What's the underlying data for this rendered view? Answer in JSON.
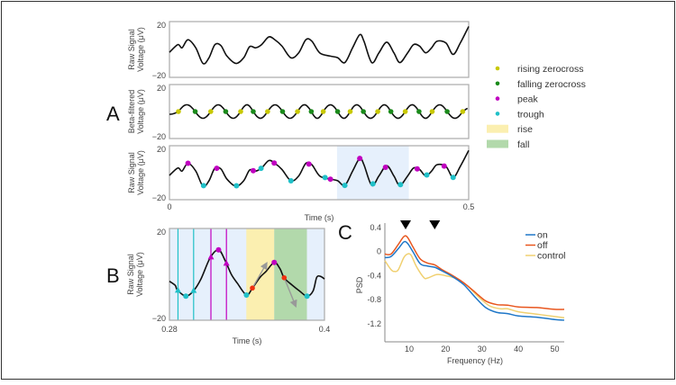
{
  "panel_letters": {
    "a": "A",
    "b": "B",
    "c": "C"
  },
  "colors": {
    "signal": "#111111",
    "rising_zerocross": "#c8c800",
    "falling_zerocross": "#1a8a1a",
    "peak": "#c000c0",
    "trough": "#20c0c8",
    "rise": "#fbefb0",
    "fall": "#b2d9ab",
    "window": "#e6f0fc",
    "extrema_marker": "#f03010",
    "arrow": "#999999",
    "on": "#1f77c8",
    "off": "#e8561e",
    "control": "#f0d070"
  },
  "legend_a": [
    {
      "label": "rising zerocross",
      "kind": "dot",
      "color_key": "rising_zerocross"
    },
    {
      "label": "falling zerocross",
      "kind": "dot",
      "color_key": "falling_zerocross"
    },
    {
      "label": "peak",
      "kind": "dot",
      "color_key": "peak"
    },
    {
      "label": "trough",
      "kind": "dot",
      "color_key": "trough"
    },
    {
      "label": "rise",
      "kind": "box",
      "color_key": "rise"
    },
    {
      "label": "fall",
      "kind": "box",
      "color_key": "fall"
    }
  ],
  "chart_data": [
    {
      "id": "A-raw",
      "type": "line",
      "ylabel": [
        "Raw Signal",
        "Voltage (μV)"
      ],
      "ylim": [
        -20,
        20
      ],
      "xlim": [
        0,
        0.5
      ],
      "yticks": [
        "20",
        "−20"
      ],
      "raw_signal": {
        "t": [
          0,
          0.014,
          0.021,
          0.031,
          0.044,
          0.056,
          0.066,
          0.076,
          0.086,
          0.096,
          0.111,
          0.124,
          0.134,
          0.144,
          0.154,
          0.166,
          0.176,
          0.188,
          0.203,
          0.216,
          0.228,
          0.238,
          0.251,
          0.268,
          0.281,
          0.293,
          0.306,
          0.318,
          0.325,
          0.338,
          0.35,
          0.363,
          0.375,
          0.385,
          0.398,
          0.408,
          0.418,
          0.428,
          0.438,
          0.447,
          0.462,
          0.474,
          0.486,
          0.5
        ],
        "v": [
          -2,
          3.5,
          1.2,
          7,
          1.2,
          -10,
          -6,
          3.5,
          2.8,
          -4.7,
          -10,
          -6,
          2,
          1.2,
          3.5,
          9,
          7,
          2.4,
          -6,
          -2.4,
          7,
          5.9,
          -2.4,
          -4.7,
          -5.9,
          -9.4,
          1.2,
          10.6,
          5.9,
          -9.4,
          -2.4,
          5.2,
          -2.4,
          -9.4,
          -2.4,
          3.5,
          2.4,
          -2.4,
          1.2,
          5.9,
          4.7,
          -3.5,
          4.7,
          16.5
        ]
      }
    },
    {
      "id": "A-beta",
      "type": "line",
      "ylabel": [
        "Beta-filtered",
        "Voltage (μV)"
      ],
      "ylim": [
        -20,
        20
      ],
      "xlim": [
        0,
        0.5
      ],
      "yticks": [
        "20",
        "−20"
      ],
      "rising_zerocross_t": [
        0.015,
        0.069,
        0.119,
        0.164,
        0.214,
        0.257,
        0.302,
        0.348,
        0.394,
        0.439,
        0.49
      ],
      "falling_zerocross_t": [
        0.043,
        0.094,
        0.14,
        0.189,
        0.237,
        0.281,
        0.324,
        0.37,
        0.417,
        0.464
      ],
      "amplitude": 5
    },
    {
      "id": "A-raw-annotated",
      "type": "line",
      "ylabel": [
        "Raw Signal",
        "Voltage (μV)"
      ],
      "ylim": [
        -20,
        20
      ],
      "xlim": [
        0,
        0.5
      ],
      "yticks": [
        "20",
        "−20"
      ],
      "xticks": [
        "0",
        "0.5"
      ],
      "xlabel": "Time (s)",
      "peak_t": [
        0.031,
        0.079,
        0.14,
        0.175,
        0.233,
        0.269,
        0.318,
        0.361,
        0.414,
        0.459
      ],
      "trough_t": [
        0.057,
        0.112,
        0.153,
        0.203,
        0.26,
        0.293,
        0.34,
        0.386,
        0.43,
        0.474
      ],
      "highlight_window": [
        0.28,
        0.4
      ]
    },
    {
      "id": "B",
      "type": "line",
      "ylabel": [
        "Raw Signal",
        "Voltage (μV)"
      ],
      "ylim": [
        -20,
        20
      ],
      "xlim": [
        0.28,
        0.4
      ],
      "yticks": [
        "20",
        "−20"
      ],
      "xticks": [
        "0.28",
        "0.4"
      ],
      "xlabel": "Time (s)",
      "signal": {
        "t": [
          0.28,
          0.2845,
          0.2861,
          0.2927,
          0.2986,
          0.3044,
          0.3115,
          0.318,
          0.3232,
          0.3279,
          0.3326,
          0.3396,
          0.3443,
          0.3501,
          0.3548,
          0.3611,
          0.3654,
          0.3689,
          0.3748,
          0.3806,
          0.3865,
          0.3912,
          0.394,
          0.397,
          0.4
        ],
        "v": [
          -3,
          -4.8,
          -6.8,
          -9.5,
          -7.2,
          -2,
          7.2,
          10.7,
          5.9,
          0,
          -3.9,
          -9,
          -5.9,
          -1.3,
          1.3,
          5.2,
          2.6,
          -1.6,
          -4.6,
          -7.2,
          -9.5,
          -7.2,
          -1.3,
          -0.9,
          -2
        ]
      },
      "trough_t": [
        0.2927,
        0.3396,
        0.3865
      ],
      "peak_t": [
        0.318,
        0.3611
      ],
      "trough_flank_t": [
        0.2866,
        0.2987
      ],
      "peak_flank_t": [
        0.3121,
        0.3241
      ],
      "rise_interval": [
        0.3395,
        0.3611
      ],
      "fall_interval": [
        0.3611,
        0.3864
      ],
      "steepest_t": [
        0.3442,
        0.3688
      ]
    },
    {
      "id": "C",
      "type": "line",
      "xlabel": "Frequency (Hz)",
      "ylabel": "PSD",
      "xlim": [
        3.3,
        52.6
      ],
      "ylim": [
        -1.5,
        0.4
      ],
      "xticks": [
        10,
        20,
        30,
        40,
        50
      ],
      "yticks": [
        0.4,
        0,
        -0.4,
        -0.8,
        -1.2
      ],
      "ytick_labels": [
        "0.4",
        "0",
        "-0.4",
        "-0.8",
        "-1.2"
      ],
      "markers_hz": [
        9,
        17
      ],
      "legend_position": "top-right",
      "series": [
        {
          "name": "on",
          "color_key": "on",
          "x": [
            3.3,
            5,
            7,
            8.5,
            9.5,
            11,
            13,
            15,
            17,
            19,
            22,
            25,
            28,
            31,
            34,
            37,
            40,
            45,
            50,
            52.6
          ],
          "y": [
            -0.1,
            -0.08,
            0.05,
            0.16,
            0.14,
            0,
            -0.2,
            -0.24,
            -0.26,
            -0.32,
            -0.42,
            -0.55,
            -0.75,
            -0.93,
            -1.01,
            -1.03,
            -1.07,
            -1.09,
            -1.13,
            -1.14
          ]
        },
        {
          "name": "off",
          "color_key": "off",
          "x": [
            3.3,
            5,
            7,
            8.5,
            9.5,
            11,
            13,
            15,
            17,
            19,
            22,
            25,
            28,
            31,
            34,
            37,
            40,
            45,
            50,
            52.6
          ],
          "y": [
            -0.04,
            -0.04,
            0.12,
            0.25,
            0.24,
            0.08,
            -0.12,
            -0.19,
            -0.22,
            -0.3,
            -0.4,
            -0.52,
            -0.67,
            -0.82,
            -0.88,
            -0.89,
            -0.92,
            -0.93,
            -0.96,
            -0.96
          ]
        },
        {
          "name": "control",
          "color_key": "control",
          "x": [
            3.3,
            5,
            6,
            7,
            8.5,
            9.5,
            10.5,
            12,
            14,
            15,
            17,
            18,
            20,
            23,
            26,
            29,
            32,
            35,
            37,
            40,
            45,
            50,
            52.6
          ],
          "y": [
            -0.15,
            -0.3,
            -0.33,
            -0.3,
            -0.1,
            -0.04,
            -0.06,
            -0.25,
            -0.43,
            -0.44,
            -0.39,
            -0.38,
            -0.4,
            -0.45,
            -0.57,
            -0.75,
            -0.9,
            -0.95,
            -0.95,
            -1.0,
            -1.04,
            -1.08,
            -1.1
          ]
        }
      ]
    }
  ]
}
